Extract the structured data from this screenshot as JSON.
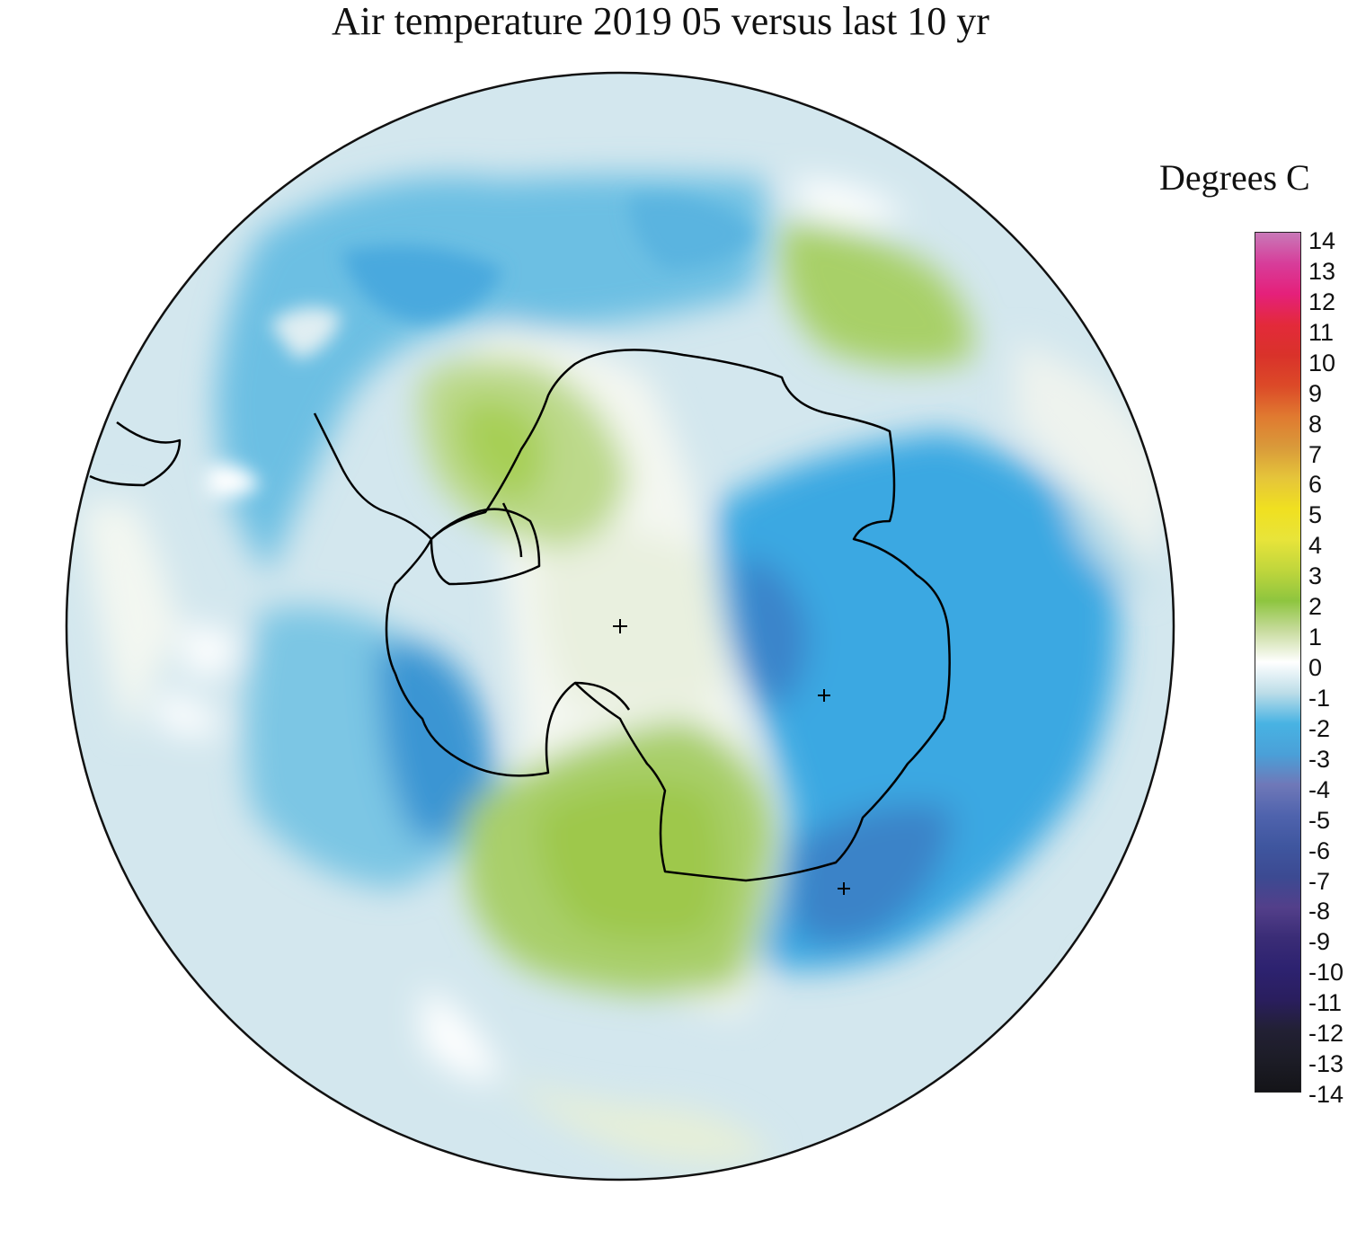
{
  "title": "Air temperature 2019 05 versus last 10 yr",
  "legend": {
    "units": "Degrees C",
    "ticks": [
      "14",
      "13",
      "12",
      "11",
      "10",
      "9",
      "8",
      "7",
      "6",
      "5",
      "4",
      "3",
      "2",
      "1",
      "0",
      "-1",
      "-2",
      "-3",
      "-4",
      "-5",
      "-6",
      "-7",
      "-8",
      "-9",
      "-10",
      "-11",
      "-12",
      "-13",
      "-14"
    ],
    "colors": {
      "14": "#c879b8",
      "13": "#d73d9a",
      "12": "#e5207a",
      "11": "#e32a3a",
      "10": "#d9322a",
      "9": "#dc4a28",
      "8": "#e07a30",
      "7": "#d99a3a",
      "6": "#e5c53a",
      "5": "#f0e020",
      "4": "#e8e43a",
      "3": "#c0d63c",
      "2": "#8ec53f",
      "1": "#c9dca0",
      "0": "#ffffff",
      "-1": "#bcdde8",
      "-2": "#48b3e3",
      "-3": "#4aa0d8",
      "-4": "#6f78b8",
      "-5": "#4f63ad",
      "-6": "#3f569f",
      "-7": "#3c4a92",
      "-8": "#533f8a",
      "-9": "#3a2c76",
      "-10": "#2d2270",
      "-11": "#2a1e5e",
      "-12": "#222034",
      "-13": "#1c1c26",
      "-14": "#141418"
    }
  },
  "map": {
    "region": "Antarctica",
    "projection": "south polar stereographic"
  }
}
